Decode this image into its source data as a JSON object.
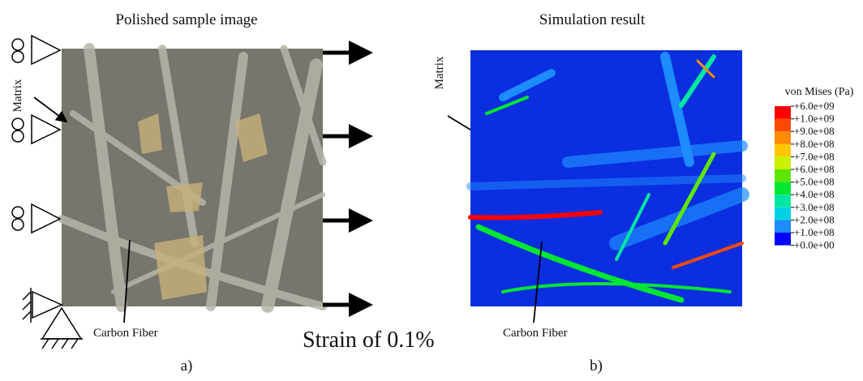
{
  "left": {
    "title": "Polished sample image",
    "matrix_label": "Matrix",
    "fiber_label": "Carbon Fiber",
    "load_label": "Strain of 0.1%",
    "panel_label": "a)"
  },
  "right": {
    "title": "Simulation result",
    "matrix_label": "Matrix",
    "fiber_label": "Carbon Fiber",
    "panel_label": "b)"
  },
  "legend": {
    "title": "von Mises (Pa)",
    "labels": [
      "+6.0e+09",
      "+1.0e+09",
      "+9.0e+08",
      "+8.0e+08",
      "+7.0e+08",
      "+6.0e+08",
      "+5.0e+08",
      "+4.0e+08",
      "+3.0e+08",
      "+2.0e+08",
      "+1.0e+08",
      "+0.0e+00"
    ],
    "colors": [
      "#ff0000",
      "#ff4a00",
      "#ff8c00",
      "#ffc800",
      "#c8f000",
      "#5ce600",
      "#00e632",
      "#00e6a0",
      "#00d2e6",
      "#1e8cff",
      "#0000ff"
    ]
  }
}
